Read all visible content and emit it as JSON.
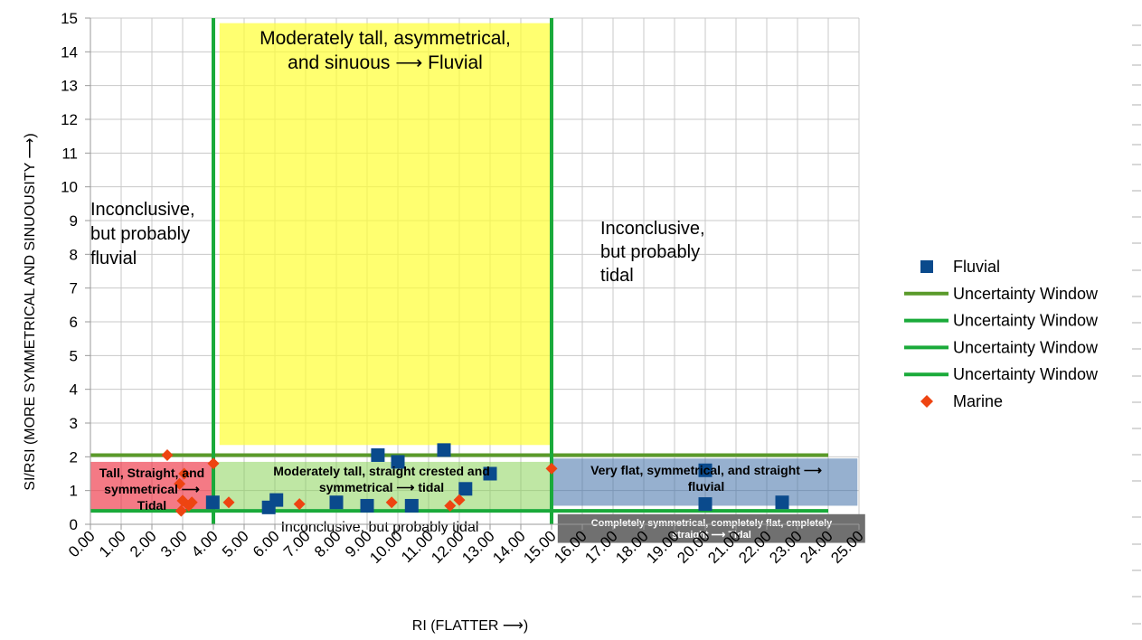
{
  "chart_data": {
    "type": "scatter",
    "xlabel": "RI (FLATTER ⟶)",
    "ylabel": "SI/RSI (MORE SYMMETRICAL AND SINUOUSITY ⟶)",
    "xlim": [
      0,
      25
    ],
    "ylim": [
      0,
      15
    ],
    "x_ticks": [
      "0.00",
      "1.00",
      "2.00",
      "3.00",
      "4.00",
      "5.00",
      "6.00",
      "7.00",
      "8.00",
      "9.00",
      "10.00",
      "11.00",
      "12.00",
      "13.00",
      "14.00",
      "15.00",
      "16.00",
      "17.00",
      "18.00",
      "19.00",
      "20.00",
      "21.00",
      "22.00",
      "23.00",
      "24.00",
      "25.00"
    ],
    "y_ticks": [
      "0",
      "1",
      "2",
      "3",
      "4",
      "5",
      "6",
      "7",
      "8",
      "9",
      "10",
      "11",
      "12",
      "13",
      "14",
      "15"
    ],
    "grid": true,
    "legend_position": "right",
    "series": [
      {
        "name": "Fluvial",
        "marker": "square",
        "color": "#0a4a8c",
        "points": [
          {
            "x": 3.98,
            "y": 0.65
          },
          {
            "x": 5.8,
            "y": 0.5
          },
          {
            "x": 6.05,
            "y": 0.72
          },
          {
            "x": 8.0,
            "y": 0.65
          },
          {
            "x": 9.0,
            "y": 0.55
          },
          {
            "x": 9.35,
            "y": 2.05
          },
          {
            "x": 10.0,
            "y": 1.85
          },
          {
            "x": 10.45,
            "y": 0.55
          },
          {
            "x": 11.5,
            "y": 2.2
          },
          {
            "x": 12.2,
            "y": 1.05
          },
          {
            "x": 13.0,
            "y": 1.5
          },
          {
            "x": 20.0,
            "y": 1.6
          },
          {
            "x": 20.0,
            "y": 0.6
          },
          {
            "x": 22.5,
            "y": 0.65
          }
        ]
      },
      {
        "name": "Marine",
        "marker": "diamond",
        "color": "#ee4411",
        "points": [
          {
            "x": 2.5,
            "y": 2.05
          },
          {
            "x": 2.9,
            "y": 1.2
          },
          {
            "x": 3.05,
            "y": 1.5
          },
          {
            "x": 3.0,
            "y": 0.7
          },
          {
            "x": 3.3,
            "y": 0.65
          },
          {
            "x": 2.95,
            "y": 0.4
          },
          {
            "x": 3.2,
            "y": 0.55
          },
          {
            "x": 4.0,
            "y": 1.8
          },
          {
            "x": 4.5,
            "y": 0.65
          },
          {
            "x": 6.8,
            "y": 0.6
          },
          {
            "x": 9.8,
            "y": 0.65
          },
          {
            "x": 11.7,
            "y": 0.55
          },
          {
            "x": 12.0,
            "y": 0.72
          },
          {
            "x": 15.0,
            "y": 1.65
          }
        ]
      }
    ],
    "reference_lines": [
      {
        "name": "Uncertainty Window",
        "color": "#5a9a2a",
        "orientation": "horizontal",
        "y": 2.05,
        "x_range": [
          0,
          24
        ]
      },
      {
        "name": "Uncertainty Window",
        "color": "#1aaa3a",
        "orientation": "vertical",
        "x": 4.0,
        "y_range": [
          0,
          15
        ]
      },
      {
        "name": "Uncertainty Window",
        "color": "#1aaa3a",
        "orientation": "vertical",
        "x": 15.0,
        "y_range": [
          0,
          15
        ]
      },
      {
        "name": "Uncertainty Window",
        "color": "#1aaa3a",
        "orientation": "horizontal",
        "y": 0.4,
        "x_range": [
          0,
          24
        ]
      }
    ],
    "regions": [
      {
        "color": "#ffff33",
        "opacity": 0.7,
        "x_range": [
          4.2,
          14.95
        ],
        "y_range": [
          2.35,
          14.85
        ],
        "label_lines": [
          "Moderately tall, asymmetrical,",
          "and sinuous ⟶ Fluvial"
        ]
      },
      {
        "color": "#ee3344",
        "opacity": 0.65,
        "x_range": [
          0.0,
          4.0
        ],
        "y_range": [
          0.35,
          1.85
        ],
        "label_lines": [
          "Tall, Straight, and",
          "symmetrical ⟶",
          "Tidal"
        ]
      },
      {
        "color": "#8bd45a",
        "opacity": 0.55,
        "x_range": [
          4.0,
          14.95
        ],
        "y_range": [
          0.45,
          1.85
        ],
        "label_lines": [
          "Moderately tall, straight crested and",
          "symmetrical ⟶ tidal"
        ]
      },
      {
        "color": "#3f6fa8",
        "opacity": 0.55,
        "x_range": [
          15.0,
          24.95
        ],
        "y_range": [
          0.55,
          1.95
        ],
        "label_lines": [
          "Very flat, symmetrical, and straight ⟶",
          "fluvial"
        ]
      },
      {
        "color": "#707070",
        "opacity": 1.0,
        "x_range": [
          15.2,
          25.2
        ],
        "y_range": [
          -0.55,
          0.3
        ],
        "label_lines": [
          "Completely symmetrical, completely flat, cmpletely",
          "straight ⟶ Tidal"
        ]
      }
    ],
    "annotations": [
      {
        "x": 0.0,
        "y": 9.3,
        "lines": [
          "Inconclusive,",
          "but probably",
          "fluvial"
        ]
      },
      {
        "x": 16.6,
        "y": 8.8,
        "lines": [
          "Inconclusive,",
          "but probably",
          "tidal"
        ]
      },
      {
        "x": 9.5,
        "y": -0.02,
        "lines": [
          "Inconclusive, but probably tidal"
        ]
      }
    ]
  },
  "legend": {
    "items": [
      {
        "label": "Fluvial",
        "kind": "square",
        "color": "#0a4a8c"
      },
      {
        "label": "Uncertainty Window",
        "kind": "line",
        "color": "#5a9a2a"
      },
      {
        "label": "Uncertainty Window",
        "kind": "line",
        "color": "#1aaa3a"
      },
      {
        "label": "Uncertainty Window",
        "kind": "line",
        "color": "#1aaa3a"
      },
      {
        "label": "Uncertainty Window",
        "kind": "line",
        "color": "#1aaa3a"
      },
      {
        "label": "Marine",
        "kind": "diamond",
        "color": "#ee4411"
      }
    ]
  }
}
